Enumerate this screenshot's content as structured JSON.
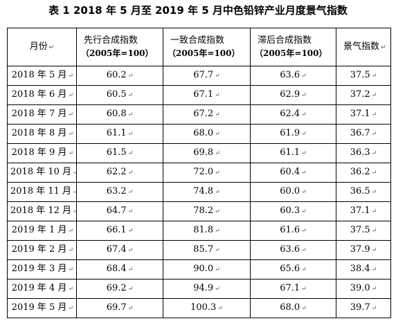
{
  "title": "表 1  2018 年 5 月至 2019 年 5 月中色铅锌产业月度景气指数",
  "para_mark": "↵",
  "headers": {
    "month": "月份",
    "leading": "先行合成指数",
    "leading_sub": "（2005年=100）",
    "coincident": "一致合成指数",
    "coincident_sub": "（2005年=100）",
    "lagging": "滞后合成指数",
    "lagging_sub": "（2005年=100）",
    "climate": "景气指数"
  },
  "rows": [
    {
      "month": "2018 年 5 月",
      "leading": "60.2",
      "coincident": "67.7",
      "lagging": "63.6",
      "climate": "37.5"
    },
    {
      "month": "2018 年 6 月",
      "leading": "60.5",
      "coincident": "67.1",
      "lagging": "62.9",
      "climate": "37.2"
    },
    {
      "month": "2018 年 7 月",
      "leading": "60.8",
      "coincident": "67.2",
      "lagging": "62.4",
      "climate": "37.1"
    },
    {
      "month": "2018 年 8 月",
      "leading": "61.1",
      "coincident": "68.0",
      "lagging": "61.9",
      "climate": "36.7"
    },
    {
      "month": "2018 年 9 月",
      "leading": "61.5",
      "coincident": "69.8",
      "lagging": "61.1",
      "climate": "36.3"
    },
    {
      "month": "2018 年 10 月",
      "leading": "62.2",
      "coincident": "72.0",
      "lagging": "60.4",
      "climate": "36.2"
    },
    {
      "month": "2018 年 11 月",
      "leading": "63.2",
      "coincident": "74.8",
      "lagging": "60.0",
      "climate": "36.5"
    },
    {
      "month": "2018 年 12 月",
      "leading": "64.7",
      "coincident": "78.2",
      "lagging": "60.3",
      "climate": "37.1"
    },
    {
      "month": "2019 年 1 月",
      "leading": "66.1",
      "coincident": "81.8",
      "lagging": "61.6",
      "climate": "37.5"
    },
    {
      "month": "2019 年 2 月",
      "leading": "67.4",
      "coincident": "85.7",
      "lagging": "63.6",
      "climate": "37.9"
    },
    {
      "month": "2019 年 3 月",
      "leading": "68.4",
      "coincident": "90.0",
      "lagging": "65.6",
      "climate": "38.4"
    },
    {
      "month": "2019 年 4 月",
      "leading": "69.2",
      "coincident": "94.9",
      "lagging": "67.1",
      "climate": "39.0"
    },
    {
      "month": "2019 年 5 月",
      "leading": "69.7",
      "coincident": "100.3",
      "lagging": "68.0",
      "climate": "39.7"
    }
  ]
}
